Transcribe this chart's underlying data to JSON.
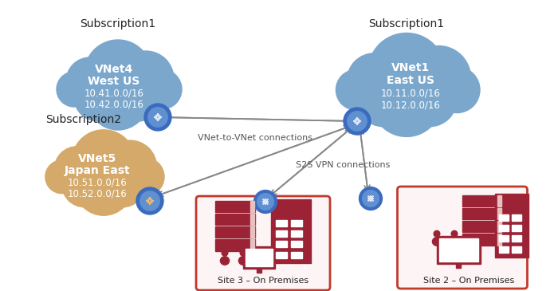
{
  "bg_color": "#ffffff",
  "sub1_left_label": "Subscription1",
  "sub1_right_label": "Subscription1",
  "sub2_label": "Subscription2",
  "vnet4_lines": [
    "VNet4",
    "West US",
    "10.41.0.0/16",
    "10.42.0.0/16"
  ],
  "vnet1_lines": [
    "VNet1",
    "East US",
    "10.11.0.0/16",
    "10.12.0.0/16"
  ],
  "vnet5_lines": [
    "VNet5",
    "Japan East",
    "10.51.0.0/16",
    "10.52.0.0/16"
  ],
  "cloud_blue": "#7ba7cc",
  "cloud_orange": "#d4a96a",
  "gw_outer": "#3a6bbf",
  "gw_inner": "#6090d0",
  "gw_arrow": "#e8b870",
  "gw_arrow_blue": "#e0e8f8",
  "conn_color": "#888888",
  "site_border": "#c0392b",
  "site_fill": "#fdf5f5",
  "site_icon_color": "#9b2335",
  "text_white": "#ffffff",
  "text_dark": "#222222",
  "text_gray": "#555555",
  "vnet_to_vnet_label": "VNet-to-VNet connections",
  "s2s_vpn_label": "S2S VPN connections",
  "site2_label": "Site 2 – On Premises",
  "site3_label": "Site 3 – On Premises",
  "sub_fontsize": 10,
  "vnet_title_fontsize": 10,
  "vnet_sub_fontsize": 8.5,
  "conn_label_fontsize": 8
}
